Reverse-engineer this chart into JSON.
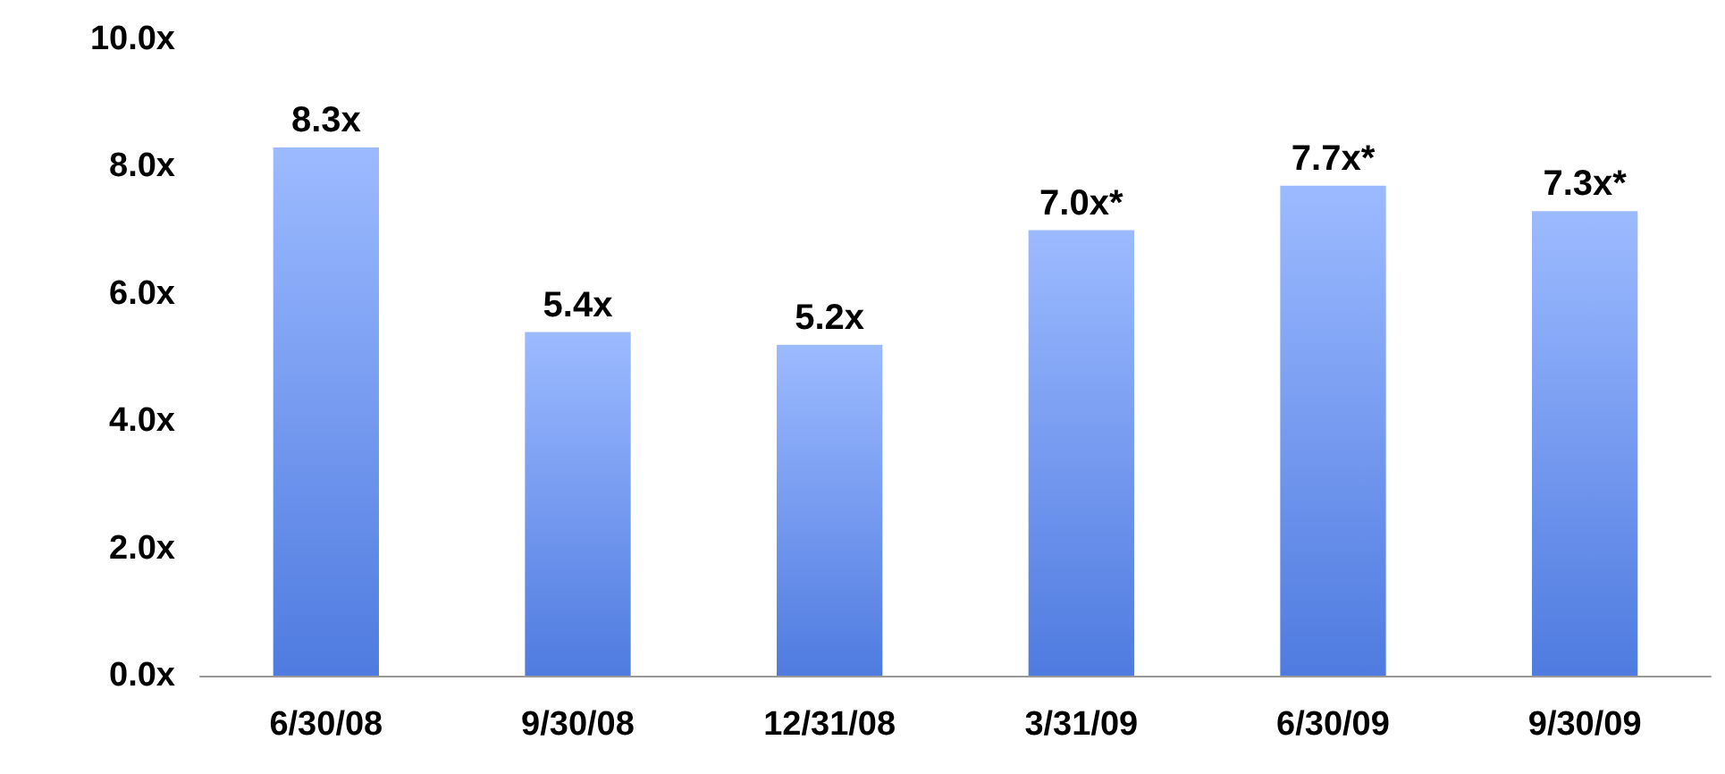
{
  "chart_data": {
    "type": "bar",
    "categories": [
      "6/30/08",
      "9/30/08",
      "12/31/08",
      "3/31/09",
      "6/30/09",
      "9/30/09"
    ],
    "values": [
      8.3,
      5.4,
      5.2,
      7.0,
      7.7,
      7.3
    ],
    "value_labels": [
      "8.3x",
      "5.4x",
      "5.2x",
      "7.0x*",
      "7.7x*",
      "7.3x*"
    ],
    "color": "#5a8cff",
    "ylim": [
      0,
      10
    ],
    "yticks": [
      {
        "value": 0,
        "label": "0.0x"
      },
      {
        "value": 2,
        "label": "2.0x"
      },
      {
        "value": 4,
        "label": "4.0x"
      },
      {
        "value": 6,
        "label": "6.0x"
      },
      {
        "value": 8,
        "label": "8.0x"
      },
      {
        "value": 10,
        "label": "10.0x"
      }
    ],
    "grid": false
  }
}
